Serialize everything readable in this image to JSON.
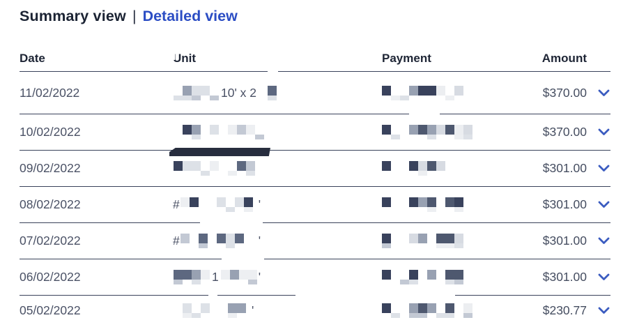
{
  "view_switcher": {
    "summary_label": "Summary view",
    "separator": "|",
    "detailed_label": "Detailed view"
  },
  "table": {
    "columns": [
      "Date",
      "Unit",
      "Payment",
      "Amount"
    ],
    "rows": [
      {
        "date": "11/02/2022",
        "unit_prefix": "",
        "unit_fragment": "10' x 2",
        "unit_suffix": "",
        "unit_redacted": true,
        "payment_redacted": true,
        "amount": "$370.00"
      },
      {
        "date": "10/02/2022",
        "unit_prefix": "",
        "unit_fragment": "",
        "unit_suffix": "",
        "unit_redacted": true,
        "payment_redacted": true,
        "amount": "$370.00"
      },
      {
        "date": "09/02/2022",
        "unit_prefix": "",
        "unit_fragment": "",
        "unit_suffix": "",
        "unit_redacted": true,
        "payment_redacted": true,
        "amount": "$301.00"
      },
      {
        "date": "08/02/2022",
        "unit_prefix": "#",
        "unit_fragment": "",
        "unit_suffix": "'",
        "unit_redacted": true,
        "payment_redacted": true,
        "amount": "$301.00"
      },
      {
        "date": "07/02/2022",
        "unit_prefix": "#",
        "unit_fragment": "",
        "unit_suffix": "'",
        "unit_redacted": true,
        "payment_redacted": true,
        "amount": "$301.00"
      },
      {
        "date": "06/02/2022",
        "unit_prefix": "",
        "unit_fragment": "1",
        "unit_suffix": "'",
        "unit_redacted": true,
        "payment_redacted": true,
        "amount": "$301.00"
      },
      {
        "date": "05/02/2022",
        "unit_prefix": "",
        "unit_fragment": "",
        "unit_suffix": "'",
        "unit_redacted": true,
        "payment_redacted": true,
        "amount": "$230.77"
      }
    ]
  },
  "colors": {
    "accent_blue": "#2b4dc4",
    "chevron_blue": "#3b5cc0",
    "header_text": "#1e2535",
    "body_text": "#4a5165",
    "divider": "#39425a",
    "redaction_bar": "#272d3e"
  }
}
